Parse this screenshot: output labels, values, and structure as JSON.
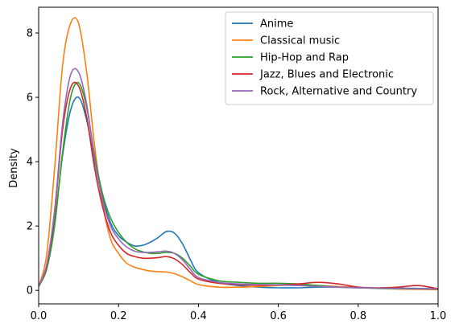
{
  "chart_data": {
    "type": "line",
    "title": "",
    "xlabel": "",
    "ylabel": "Density",
    "xlim": [
      0.0,
      1.0
    ],
    "ylim": [
      -0.42,
      8.8
    ],
    "x_ticks": [
      0.0,
      0.2,
      0.4,
      0.6,
      0.8,
      1.0
    ],
    "x_tick_labels": [
      "0.0",
      "0.2",
      "0.4",
      "0.6",
      "0.8",
      "1.0"
    ],
    "y_ticks": [
      0,
      2,
      4,
      6,
      8
    ],
    "y_tick_labels": [
      "0",
      "2",
      "4",
      "6",
      "8"
    ],
    "grid": false,
    "legend_position": "top-right",
    "series": [
      {
        "name": "Anime",
        "color": "#1f77b4",
        "x": [
          0.0,
          0.02,
          0.04,
          0.06,
          0.08,
          0.1,
          0.12,
          0.14,
          0.16,
          0.18,
          0.2,
          0.22,
          0.24,
          0.26,
          0.28,
          0.3,
          0.32,
          0.34,
          0.36,
          0.38,
          0.4,
          0.45,
          0.5,
          0.55,
          0.6,
          0.65,
          0.7,
          0.75,
          0.8,
          0.85,
          0.9,
          0.95,
          1.0
        ],
        "y": [
          0.12,
          0.7,
          2.1,
          4.2,
          5.6,
          6.0,
          5.3,
          4.0,
          2.9,
          2.1,
          1.7,
          1.5,
          1.38,
          1.4,
          1.5,
          1.65,
          1.83,
          1.78,
          1.45,
          0.95,
          0.55,
          0.25,
          0.15,
          0.1,
          0.08,
          0.08,
          0.1,
          0.1,
          0.08,
          0.07,
          0.07,
          0.06,
          0.05
        ]
      },
      {
        "name": "Classical music",
        "color": "#ff7f0e",
        "x": [
          0.0,
          0.02,
          0.04,
          0.06,
          0.08,
          0.1,
          0.12,
          0.14,
          0.16,
          0.18,
          0.2,
          0.22,
          0.24,
          0.26,
          0.28,
          0.3,
          0.32,
          0.34,
          0.36,
          0.38,
          0.4,
          0.45,
          0.5,
          0.55,
          0.6,
          0.65,
          0.7,
          0.75,
          0.8,
          0.85,
          0.9,
          0.95,
          1.0
        ],
        "y": [
          0.12,
          1.1,
          3.8,
          7.0,
          8.3,
          8.3,
          6.8,
          4.5,
          2.7,
          1.6,
          1.15,
          0.85,
          0.72,
          0.65,
          0.6,
          0.58,
          0.57,
          0.52,
          0.42,
          0.3,
          0.18,
          0.1,
          0.1,
          0.12,
          0.15,
          0.17,
          0.15,
          0.12,
          0.09,
          0.06,
          0.04,
          0.03,
          0.02
        ]
      },
      {
        "name": "Hip-Hop and Rap",
        "color": "#2ca02c",
        "x": [
          0.0,
          0.02,
          0.04,
          0.06,
          0.08,
          0.1,
          0.12,
          0.14,
          0.16,
          0.18,
          0.2,
          0.22,
          0.24,
          0.26,
          0.28,
          0.3,
          0.32,
          0.34,
          0.36,
          0.38,
          0.4,
          0.45,
          0.5,
          0.55,
          0.6,
          0.65,
          0.7,
          0.75,
          0.8,
          0.85,
          0.9,
          0.95,
          1.0
        ],
        "y": [
          0.12,
          0.65,
          2.0,
          4.3,
          6.0,
          6.45,
          5.7,
          4.2,
          3.0,
          2.25,
          1.8,
          1.5,
          1.3,
          1.2,
          1.15,
          1.15,
          1.18,
          1.15,
          1.0,
          0.75,
          0.5,
          0.3,
          0.25,
          0.22,
          0.22,
          0.2,
          0.15,
          0.1,
          0.08,
          0.06,
          0.05,
          0.05,
          0.04
        ]
      },
      {
        "name": "Jazz, Blues and Electronic",
        "color": "#d62728",
        "x": [
          0.0,
          0.02,
          0.04,
          0.06,
          0.08,
          0.1,
          0.12,
          0.14,
          0.16,
          0.18,
          0.2,
          0.22,
          0.24,
          0.26,
          0.28,
          0.3,
          0.32,
          0.34,
          0.36,
          0.38,
          0.4,
          0.45,
          0.5,
          0.55,
          0.6,
          0.65,
          0.7,
          0.75,
          0.8,
          0.85,
          0.9,
          0.95,
          1.0
        ],
        "y": [
          0.12,
          0.75,
          2.4,
          5.0,
          6.3,
          6.35,
          5.4,
          3.8,
          2.6,
          1.8,
          1.4,
          1.15,
          1.05,
          1.0,
          1.0,
          1.02,
          1.05,
          0.98,
          0.8,
          0.55,
          0.35,
          0.22,
          0.18,
          0.16,
          0.17,
          0.2,
          0.25,
          0.2,
          0.1,
          0.08,
          0.1,
          0.15,
          0.05
        ]
      },
      {
        "name": "Rock, Alternative and Country",
        "color": "#9467bd",
        "x": [
          0.0,
          0.02,
          0.04,
          0.06,
          0.08,
          0.1,
          0.12,
          0.14,
          0.16,
          0.18,
          0.2,
          0.22,
          0.24,
          0.26,
          0.28,
          0.3,
          0.32,
          0.34,
          0.36,
          0.38,
          0.4,
          0.45,
          0.5,
          0.55,
          0.6,
          0.65,
          0.7,
          0.75,
          0.8,
          0.85,
          0.9,
          0.95,
          1.0
        ],
        "y": [
          0.12,
          0.8,
          2.5,
          5.2,
          6.7,
          6.78,
          5.8,
          4.1,
          2.8,
          2.0,
          1.6,
          1.35,
          1.22,
          1.18,
          1.18,
          1.2,
          1.22,
          1.15,
          0.95,
          0.65,
          0.4,
          0.25,
          0.2,
          0.18,
          0.17,
          0.15,
          0.12,
          0.1,
          0.08,
          0.07,
          0.06,
          0.05,
          0.04
        ]
      }
    ]
  }
}
